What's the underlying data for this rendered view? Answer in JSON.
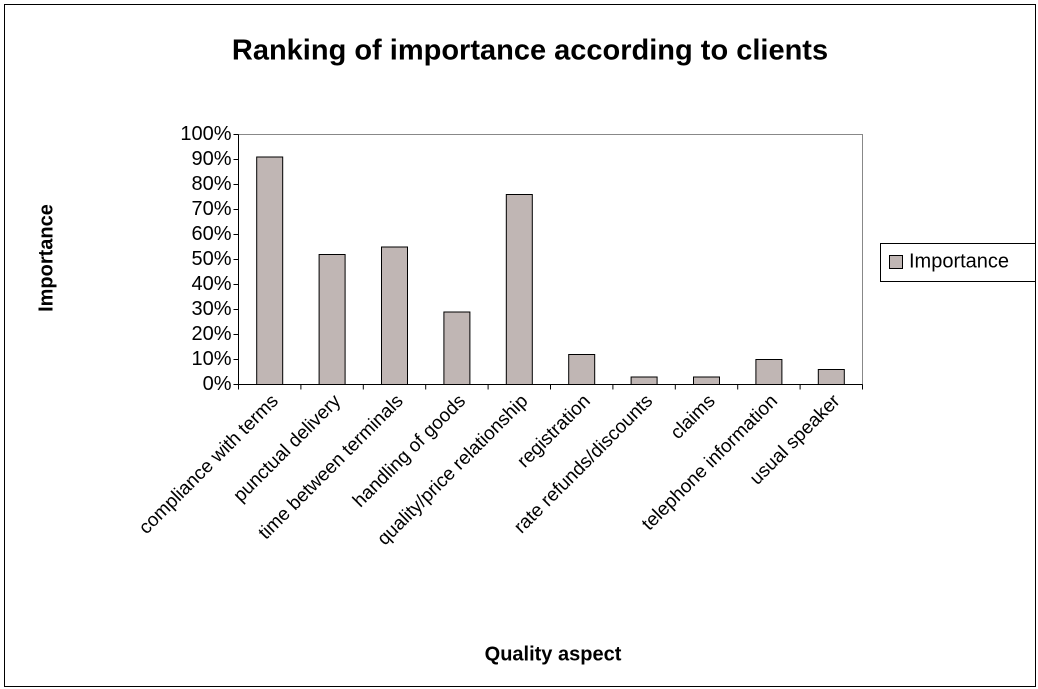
{
  "chart_data": {
    "type": "bar",
    "title": "Ranking of importance according to clients",
    "x_label": "Quality aspect",
    "y_label": "Importance",
    "categories": [
      "compliance with terms",
      "punctual delivery",
      "time between terminals",
      "handling of goods",
      "quality/price relationship",
      "registration",
      "rate refunds/discounts",
      "claims",
      "telephone information",
      "usual speaker"
    ],
    "series": [
      {
        "name": "Importance",
        "color": "#c0b6b4",
        "values": [
          91,
          52,
          55,
          29,
          76,
          12,
          3,
          3,
          10,
          6
        ]
      }
    ],
    "ylim": [
      0,
      100
    ],
    "yticks": [
      {
        "value": 0,
        "label": "0%"
      },
      {
        "value": 10,
        "label": "10%"
      },
      {
        "value": 20,
        "label": "20%"
      },
      {
        "value": 30,
        "label": "30%"
      },
      {
        "value": 40,
        "label": "40%"
      },
      {
        "value": 50,
        "label": "50%"
      },
      {
        "value": 60,
        "label": "60%"
      },
      {
        "value": 70,
        "label": "70%"
      },
      {
        "value": 80,
        "label": "80%"
      },
      {
        "value": 90,
        "label": "90%"
      },
      {
        "value": 100,
        "label": "100%"
      }
    ],
    "grid": false,
    "legend": "right"
  }
}
